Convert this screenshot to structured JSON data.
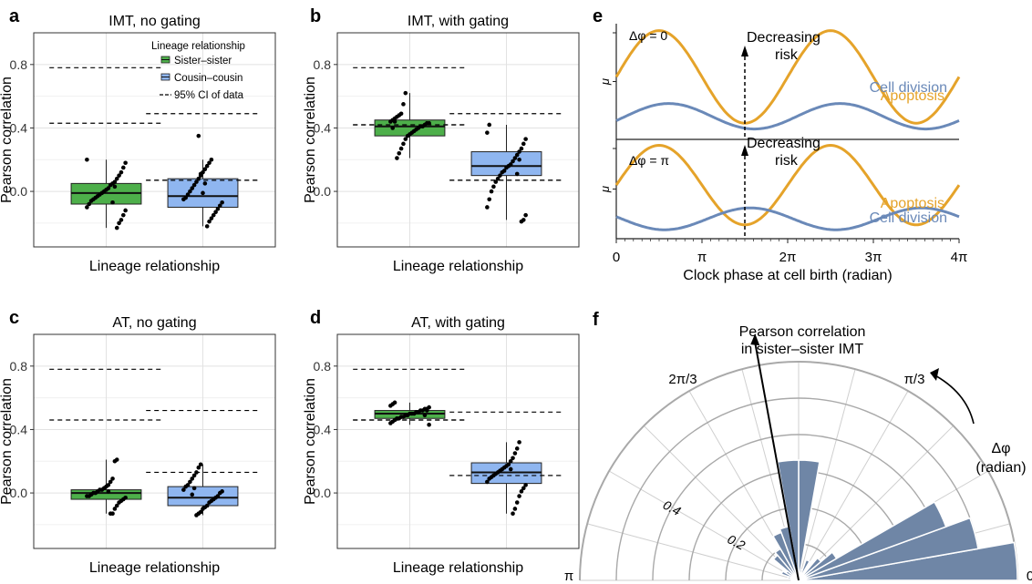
{
  "panel_letters": [
    "a",
    "b",
    "c",
    "d",
    "e",
    "f"
  ],
  "box_panels": [
    {
      "id": "a",
      "title": "IMT, no gating",
      "xlabel": "Lineage relationship",
      "ylabel": "Pearson correlation",
      "yticks": [
        "0.0",
        "0.4",
        "0.8"
      ],
      "ylim": [
        -0.35,
        1.0
      ],
      "legend": {
        "title": "Lineage relationship",
        "items": [
          "Sister–sister",
          "Cousin–cousin",
          "95% CI of data"
        ]
      },
      "groups": [
        {
          "name": "Sister–sister",
          "color": "#4daf4a",
          "q1": -0.08,
          "median": -0.01,
          "q3": 0.05,
          "whisker_low": -0.23,
          "whisker_high": 0.2,
          "ci": [
            0.43,
            0.78
          ],
          "points": [
            0.2,
            0.18,
            0.15,
            0.12,
            0.1,
            0.08,
            0.06,
            0.05,
            0.04,
            0.02,
            0.01,
            0.0,
            -0.01,
            -0.02,
            -0.03,
            -0.04,
            -0.05,
            -0.06,
            -0.08,
            -0.1,
            -0.12,
            -0.15,
            -0.18,
            -0.2,
            -0.23,
            0.03,
            -0.07
          ]
        },
        {
          "name": "Cousin–cousin",
          "color": "#8fb6f0",
          "q1": -0.1,
          "median": -0.03,
          "q3": 0.08,
          "whisker_low": -0.22,
          "whisker_high": 0.2,
          "ci": [
            0.07,
            0.49
          ],
          "points": [
            0.2,
            0.18,
            0.16,
            0.14,
            0.12,
            0.1,
            0.08,
            0.06,
            0.04,
            0.02,
            0.0,
            -0.02,
            -0.04,
            -0.05,
            -0.07,
            -0.09,
            -0.11,
            -0.13,
            -0.15,
            -0.17,
            -0.19,
            -0.22,
            0.05,
            -0.01,
            0.11,
            0.35
          ]
        }
      ]
    },
    {
      "id": "b",
      "title": "IMT, with gating",
      "xlabel": "Lineage relationship",
      "ylabel": "Pearson correlation",
      "yticks": [
        "0.0",
        "0.4",
        "0.8"
      ],
      "ylim": [
        -0.35,
        1.0
      ],
      "groups": [
        {
          "name": "Sister–sister",
          "color": "#4daf4a",
          "q1": 0.35,
          "median": 0.41,
          "q3": 0.45,
          "whisker_low": 0.21,
          "whisker_high": 0.62,
          "ci": [
            0.42,
            0.78
          ],
          "points": [
            0.62,
            0.55,
            0.49,
            0.48,
            0.47,
            0.46,
            0.45,
            0.44,
            0.43,
            0.43,
            0.42,
            0.41,
            0.41,
            0.4,
            0.39,
            0.38,
            0.37,
            0.36,
            0.35,
            0.33,
            0.3,
            0.27,
            0.24,
            0.21,
            0.44,
            0.4
          ]
        },
        {
          "name": "Cousin–cousin",
          "color": "#8fb6f0",
          "q1": 0.1,
          "median": 0.16,
          "q3": 0.25,
          "whisker_low": -0.18,
          "whisker_high": 0.42,
          "ci": [
            0.07,
            0.49
          ],
          "points": [
            0.42,
            0.37,
            0.33,
            0.3,
            0.27,
            0.25,
            0.23,
            0.21,
            0.19,
            0.17,
            0.16,
            0.15,
            0.13,
            0.12,
            0.1,
            0.08,
            0.06,
            0.03,
            0.0,
            -0.05,
            -0.1,
            -0.15,
            -0.18,
            -0.19,
            0.2,
            0.11
          ]
        }
      ]
    },
    {
      "id": "c",
      "title": "AT, no gating",
      "xlabel": "Lineage relationship",
      "ylabel": "Pearson correlation",
      "yticks": [
        "0.0",
        "0.4",
        "0.8"
      ],
      "ylim": [
        -0.35,
        1.0
      ],
      "groups": [
        {
          "name": "Sister–sister",
          "color": "#4daf4a",
          "q1": -0.04,
          "median": 0.0,
          "q3": 0.02,
          "whisker_low": -0.13,
          "whisker_high": 0.21,
          "ci": [
            0.46,
            0.78
          ],
          "points": [
            0.21,
            0.2,
            0.09,
            0.07,
            0.05,
            0.04,
            0.03,
            0.02,
            0.02,
            0.01,
            0.0,
            0.0,
            -0.01,
            -0.02,
            -0.02,
            -0.03,
            -0.04,
            -0.05,
            -0.06,
            -0.08,
            -0.1,
            -0.13,
            -0.13,
            0.01
          ]
        },
        {
          "name": "Cousin–cousin",
          "color": "#8fb6f0",
          "q1": -0.08,
          "median": -0.03,
          "q3": 0.04,
          "whisker_low": -0.14,
          "whisker_high": 0.18,
          "ci": [
            0.13,
            0.52
          ],
          "points": [
            0.18,
            0.16,
            0.13,
            0.11,
            0.09,
            0.07,
            0.05,
            0.04,
            0.02,
            0.01,
            0.0,
            -0.02,
            -0.03,
            -0.04,
            -0.05,
            -0.06,
            -0.08,
            -0.09,
            -0.1,
            -0.12,
            -0.13,
            -0.14,
            0.03,
            -0.01
          ]
        }
      ]
    },
    {
      "id": "d",
      "title": "AT, with gating",
      "xlabel": "Lineage relationship",
      "ylabel": "Pearson correlation",
      "yticks": [
        "0.0",
        "0.4",
        "0.8"
      ],
      "ylim": [
        -0.35,
        1.0
      ],
      "groups": [
        {
          "name": "Sister–sister",
          "color": "#4daf4a",
          "q1": 0.47,
          "median": 0.5,
          "q3": 0.52,
          "whisker_low": 0.43,
          "whisker_high": 0.57,
          "ci": [
            0.46,
            0.78
          ],
          "points": [
            0.57,
            0.56,
            0.55,
            0.54,
            0.53,
            0.53,
            0.52,
            0.52,
            0.51,
            0.51,
            0.5,
            0.5,
            0.5,
            0.49,
            0.49,
            0.48,
            0.48,
            0.47,
            0.47,
            0.46,
            0.45,
            0.44,
            0.43,
            0.52,
            0.49
          ]
        },
        {
          "name": "Cousin–cousin",
          "color": "#8fb6f0",
          "q1": 0.06,
          "median": 0.13,
          "q3": 0.19,
          "whisker_low": -0.13,
          "whisker_high": 0.32,
          "ci": [
            0.11,
            0.51
          ],
          "points": [
            0.32,
            0.28,
            0.25,
            0.22,
            0.2,
            0.18,
            0.17,
            0.16,
            0.15,
            0.14,
            0.13,
            0.12,
            0.11,
            0.1,
            0.09,
            0.07,
            0.05,
            0.03,
            0.01,
            -0.02,
            -0.06,
            -0.1,
            -0.13,
            0.15
          ]
        }
      ]
    }
  ],
  "phase_panel": {
    "id": "e",
    "xlabel": "Clock phase at cell birth (radian)",
    "xticks": [
      "0",
      "π",
      "2π",
      "3π",
      "4π"
    ],
    "ylabel": "μ",
    "arrow_label_line1": "Decreasing",
    "arrow_label_line2": "risk",
    "apoptosis_color": "#e5a32a",
    "division_color": "#6a89b8",
    "subpanels": [
      {
        "delta_label": "Δφ = 0",
        "apoptosis_label": "Apoptosis",
        "division_label": "Cell division",
        "delta_phase": 0
      },
      {
        "delta_label": "Δφ = π",
        "apoptosis_label": "Apoptosis",
        "division_label": "Cell division",
        "delta_phase": 3.14159
      }
    ]
  },
  "polar_panel": {
    "id": "f",
    "arrow_label_line1": "Pearson correlation",
    "arrow_label_line2": "in sister–sister IMT",
    "angle_labels": [
      "0",
      "π/3",
      "2π/3",
      "π"
    ],
    "radial_labels": [
      "0.2",
      "0.4"
    ],
    "delta_label_line1": "Δφ",
    "delta_label_line2": "(radian)",
    "bar_color": "#6f86a6",
    "arrow_angle_deg": 100,
    "bins": [
      {
        "start_deg": 0,
        "end_deg": 10,
        "r": 0.6
      },
      {
        "start_deg": 10,
        "end_deg": 20,
        "r": 0.5
      },
      {
        "start_deg": 20,
        "end_deg": 30,
        "r": 0.43
      },
      {
        "start_deg": 30,
        "end_deg": 40,
        "r": 0.12
      },
      {
        "start_deg": 40,
        "end_deg": 50,
        "r": 0.08
      },
      {
        "start_deg": 60,
        "end_deg": 70,
        "r": 0.06
      },
      {
        "start_deg": 70,
        "end_deg": 80,
        "r": 0.03
      },
      {
        "start_deg": 80,
        "end_deg": 90,
        "r": 0.33
      },
      {
        "start_deg": 90,
        "end_deg": 100,
        "r": 0.33
      },
      {
        "start_deg": 100,
        "end_deg": 110,
        "r": 0.15
      },
      {
        "start_deg": 110,
        "end_deg": 120,
        "r": 0.14
      },
      {
        "start_deg": 120,
        "end_deg": 130,
        "r": 0.1
      },
      {
        "start_deg": 130,
        "end_deg": 140,
        "r": 0.09
      },
      {
        "start_deg": 140,
        "end_deg": 150,
        "r": 0.04
      },
      {
        "start_deg": 150,
        "end_deg": 160,
        "r": 0.05
      },
      {
        "start_deg": 160,
        "end_deg": 170,
        "r": 0.03
      },
      {
        "start_deg": 170,
        "end_deg": 180,
        "r": 0.02
      }
    ]
  },
  "chart_data": [
    {
      "type": "box",
      "panel": "a",
      "title": "IMT, no gating",
      "xlabel": "Lineage relationship",
      "ylabel": "Pearson correlation",
      "categories": [
        "Sister–sister",
        "Cousin–cousin"
      ],
      "medians": [
        -0.01,
        -0.03
      ],
      "ci_95": [
        [
          0.43,
          0.78
        ],
        [
          0.07,
          0.49
        ]
      ],
      "ylim": [
        -0.35,
        1.0
      ]
    },
    {
      "type": "box",
      "panel": "b",
      "title": "IMT, with gating",
      "xlabel": "Lineage relationship",
      "ylabel": "Pearson correlation",
      "categories": [
        "Sister–sister",
        "Cousin–cousin"
      ],
      "medians": [
        0.41,
        0.16
      ],
      "ci_95": [
        [
          0.42,
          0.78
        ],
        [
          0.07,
          0.49
        ]
      ],
      "ylim": [
        -0.35,
        1.0
      ]
    },
    {
      "type": "box",
      "panel": "c",
      "title": "AT, no gating",
      "xlabel": "Lineage relationship",
      "ylabel": "Pearson correlation",
      "categories": [
        "Sister–sister",
        "Cousin–cousin"
      ],
      "medians": [
        0.0,
        -0.03
      ],
      "ci_95": [
        [
          0.46,
          0.78
        ],
        [
          0.13,
          0.52
        ]
      ],
      "ylim": [
        -0.35,
        1.0
      ]
    },
    {
      "type": "box",
      "panel": "d",
      "title": "AT, with gating",
      "xlabel": "Lineage relationship",
      "ylabel": "Pearson correlation",
      "categories": [
        "Sister–sister",
        "Cousin–cousin"
      ],
      "medians": [
        0.5,
        0.13
      ],
      "ci_95": [
        [
          0.46,
          0.78
        ],
        [
          0.11,
          0.51
        ]
      ],
      "ylim": [
        -0.35,
        1.0
      ]
    },
    {
      "type": "line",
      "panel": "e",
      "xlabel": "Clock phase at cell birth (radian)",
      "xlim": [
        0,
        12.566
      ],
      "series": [
        {
          "name": "Apoptosis"
        },
        {
          "name": "Cell division"
        }
      ]
    },
    {
      "type": "bar",
      "panel": "f",
      "polar": true,
      "xlabel": "Δφ (radian)",
      "angle_range_deg": [
        0,
        180
      ],
      "radial_ticks": [
        0.2,
        0.4
      ]
    }
  ]
}
